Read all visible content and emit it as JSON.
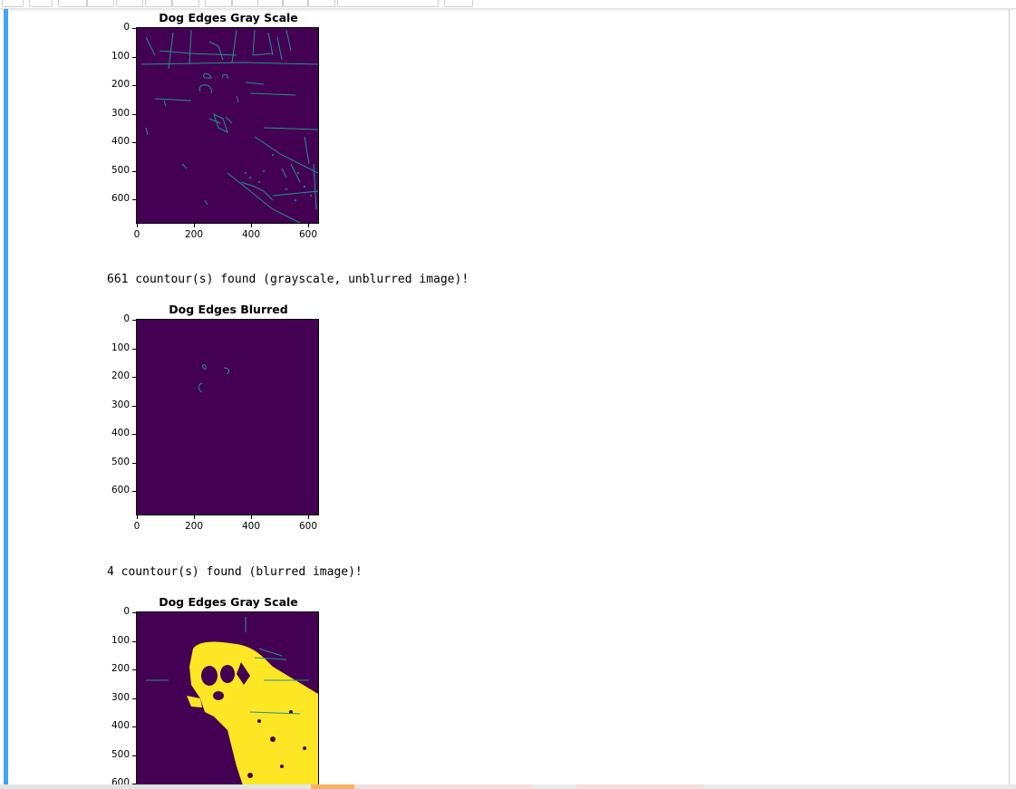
{
  "notebook": {
    "outputs": {
      "text_1": "661 countour(s) found (grayscale, unblurred image)!",
      "text_2": "4 countour(s) found (blurred image)!"
    }
  },
  "figures": [
    {
      "title": "Dog Edges Gray Scale",
      "yticks": [
        "0",
        "100",
        "200",
        "300",
        "400",
        "500",
        "600"
      ],
      "xticks": [
        "0",
        "200",
        "400",
        "600"
      ],
      "content": "sparse-edges"
    },
    {
      "title": "Dog Edges Blurred",
      "yticks": [
        "0",
        "100",
        "200",
        "300",
        "400",
        "500",
        "600"
      ],
      "xticks": [
        "0",
        "200",
        "400",
        "600"
      ],
      "content": "few-edges"
    },
    {
      "title": "Dog Edges Gray Scale",
      "yticks": [
        "0",
        "100",
        "200",
        "300",
        "400",
        "500",
        "600"
      ],
      "xticks": [],
      "content": "threshold-yellow"
    }
  ],
  "colors": {
    "accent": "#42a5f5",
    "plot_background": "#440154",
    "edge_color": "#21918c",
    "fill_color": "#fde725"
  }
}
